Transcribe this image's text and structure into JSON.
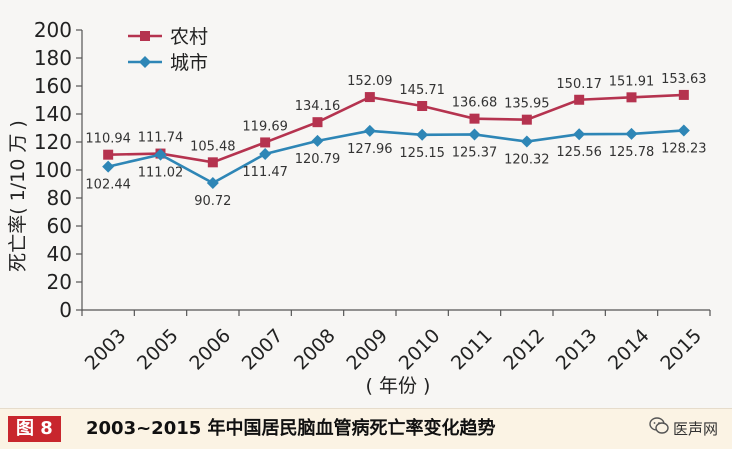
{
  "chart_data": {
    "type": "line",
    "categories": [
      "2003",
      "2005",
      "2006",
      "2007",
      "2008",
      "2009",
      "2010",
      "2011",
      "2012",
      "2013",
      "2014",
      "2015"
    ],
    "series": [
      {
        "name": "农村",
        "color": "#b5334f",
        "marker": "square",
        "values": [
          110.94,
          111.74,
          105.48,
          119.69,
          134.16,
          152.09,
          145.71,
          136.68,
          135.95,
          150.17,
          151.91,
          153.63
        ]
      },
      {
        "name": "城市",
        "color": "#2e86b6",
        "marker": "diamond",
        "values": [
          102.44,
          111.02,
          90.72,
          111.47,
          120.79,
          127.96,
          125.15,
          125.37,
          120.32,
          125.56,
          125.78,
          128.23
        ]
      }
    ],
    "ylabel": "死亡率(  1/10 万 )",
    "xlabel": "( 年份 )",
    "ylim": [
      0,
      200
    ],
    "yticks": [
      0,
      20,
      40,
      60,
      80,
      100,
      120,
      140,
      160,
      180,
      200
    ],
    "legend_position": "top-left",
    "grid": false
  },
  "caption": {
    "figure_label": "图 8",
    "text": "2003~2015 年中国居民脑血管病死亡率变化趋势"
  },
  "brand": {
    "name": "医声网",
    "icon": "wechat-icon"
  }
}
